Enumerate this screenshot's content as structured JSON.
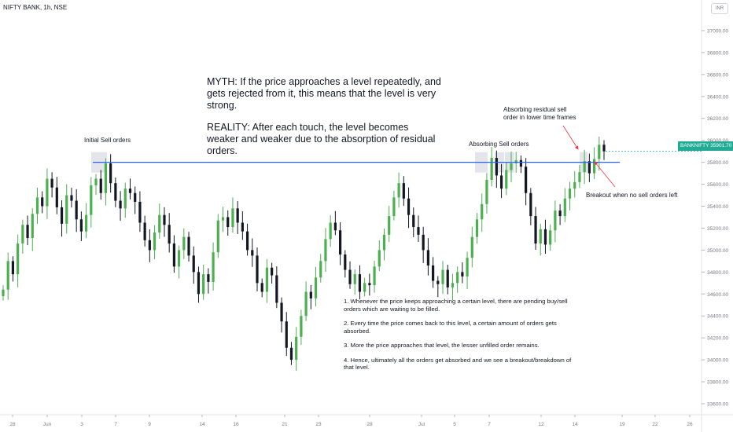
{
  "header": {
    "symbol": "NIFTY BANK, 1h, NSE",
    "currency": "INR"
  },
  "price_tag": "BANKNIFTY  35901.70",
  "texts": {
    "myth": "MYTH: If the price approaches a level repeatedly, and gets rejected from it, this means that the level is very strong.",
    "reality": "REALITY: After each touch, the level becomes weaker and weaker due to the absorption of residual orders.",
    "notes": [
      "1. Whenever the price keeps approaching a certain level, there are pending buy/sell orders which are waiting to be filled.",
      "2. Every time the price comes back to this level, a certain amount of orders gets absorbed.",
      "3. More the price approaches that level, the lesser unfilled order remains.",
      "4. Hence, ultimately all the orders get absorbed and we see a breakout/breakdown of that level."
    ],
    "initial_sell": "Initial Sell orders",
    "absorbing_sell": "Absorbing Sell orders",
    "absorbing_residual": "Absorbing residual sell\norder in lower time frames",
    "breakout": "Breakout when no sell orders left"
  },
  "colors": {
    "up": "#22ab94",
    "up_body": "#4caf50",
    "down": "#131722",
    "level_line": "#2962ff",
    "highlight": "#d1d4dc",
    "arrow": "#f23645"
  },
  "chart_data": {
    "type": "candlestick",
    "resolution": "1h",
    "resistance_level": 35800,
    "y_range": [
      33500,
      37150
    ],
    "y_ticks": [
      33600,
      33800,
      34000,
      34200,
      34400,
      34600,
      34800,
      35000,
      35200,
      35400,
      35600,
      35800,
      36000,
      36200,
      36400,
      36600,
      36800,
      37000
    ],
    "y_tick_labels": [
      "33600.00",
      "33800.00",
      "34000.00",
      "34200.00",
      "34400.00",
      "34600.00",
      "34800.00",
      "35000.00",
      "35200.00",
      "35400.00",
      "35600.00",
      "35800.00",
      "36000.00",
      "36200.00",
      "36400.00",
      "36600.00",
      "36800.00",
      "37000.00"
    ],
    "x_tick_labels": [
      "28",
      "Jun",
      "3",
      "7",
      "9",
      "14",
      "16",
      "21",
      "23",
      "28",
      "Jul",
      "5",
      "7",
      "12",
      "14",
      "19",
      "22",
      "26"
    ],
    "closes": [
      34640,
      34900,
      34780,
      35060,
      35230,
      35110,
      35330,
      35480,
      35400,
      35650,
      35570,
      35390,
      35240,
      35500,
      35450,
      35280,
      35170,
      35320,
      35590,
      35650,
      35520,
      35790,
      35610,
      35450,
      35380,
      35560,
      35520,
      35440,
      35250,
      35090,
      35000,
      35160,
      35320,
      35230,
      35060,
      34850,
      35000,
      35120,
      34950,
      34800,
      34600,
      34780,
      34710,
      34980,
      35270,
      35300,
      35210,
      35380,
      35250,
      35170,
      35000,
      34950,
      34700,
      34620,
      34840,
      34770,
      34520,
      34350,
      34110,
      34000,
      34210,
      34400,
      34620,
      34560,
      34750,
      34900,
      35100,
      35250,
      35180,
      34960,
      34820,
      34690,
      34780,
      34620,
      34700,
      34680,
      34850,
      35000,
      35140,
      35310,
      35480,
      35610,
      35470,
      35320,
      35210,
      35140,
      35000,
      34860,
      34720,
      34690,
      34820,
      34660,
      34700,
      34800,
      34760,
      34930,
      35120,
      35280,
      35420,
      35640,
      35840,
      35680,
      35560,
      35730,
      35790,
      35820,
      35760,
      35520,
      35310,
      35060,
      35190,
      35050,
      35180,
      35360,
      35310,
      35470,
      35560,
      35620,
      35710,
      35810,
      35700,
      35830,
      35960,
      35900
    ]
  }
}
